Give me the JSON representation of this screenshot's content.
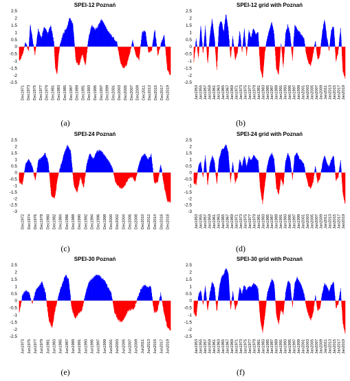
{
  "chart_data": [
    {
      "type": "area",
      "title": "SPEI-12 Poznań",
      "caption": "(a)",
      "ylim": [
        -2.5,
        2.5
      ],
      "yticks": [
        "2.5",
        "2",
        "1.5",
        "1",
        "0.5",
        "0",
        "-0.5",
        "-1",
        "-1.5",
        "-2",
        "-2.5"
      ],
      "x_range": [
        1971,
        2019
      ],
      "xticks": [
        "Dec1971",
        "Dec1973",
        "Dec1975",
        "Dec1977",
        "Dec1979",
        "Dec1981",
        "Dec1983",
        "Dec1985",
        "Dec1987",
        "Dec1989",
        "Dec1991",
        "Dec1993",
        "Dec1995",
        "Dec1997",
        "Dec1999",
        "Dec2001",
        "Dec2003",
        "Dec2005",
        "Dec2007",
        "Dec2009",
        "Dec2011",
        "Dec2013",
        "Dec2015",
        "Dec2017",
        "Dec2019"
      ],
      "positive_color": "#0000ff",
      "negative_color": "#ff0000",
      "series": [
        {
          "x": [
            1971,
            1972,
            1973,
            1974,
            1974.5,
            1975,
            1976,
            1977,
            1978,
            1979,
            1980,
            1981,
            1982,
            1982.5,
            1983,
            1983.5,
            1984,
            1985,
            1986,
            1987,
            1988,
            1989,
            1990,
            1991,
            1992,
            1993,
            1994,
            1995,
            1996,
            1997,
            1998,
            1999,
            2000,
            2001,
            2002,
            2003,
            2004,
            2005,
            2006,
            2007,
            2008,
            2009,
            2010,
            2011,
            2012,
            2013,
            2014,
            2015,
            2016,
            2017,
            2018,
            2019
          ],
          "y": [
            -1.0,
            -0.6,
            0.3,
            -0.3,
            1.5,
            0.8,
            -0.6,
            1.2,
            0.6,
            1.4,
            0.9,
            1.5,
            0.3,
            -1.5,
            -1.9,
            -0.5,
            0.2,
            0.9,
            1.3,
            2.0,
            1.6,
            -1.0,
            -1.3,
            -0.5,
            -1.3,
            0.6,
            1.5,
            1.2,
            1.4,
            1.9,
            1.6,
            1.1,
            0.8,
            0.6,
            0.3,
            -1.0,
            -1.5,
            -1.3,
            -0.5,
            0.4,
            -0.6,
            -0.9,
            1.0,
            1.1,
            -0.4,
            -0.3,
            1.2,
            -0.6,
            0.2,
            0.8,
            -1.6,
            -2.0
          ]
        }
      ]
    },
    {
      "type": "area",
      "title": "SPEI-12 grid with Poznań",
      "caption": "(b)",
      "ylim": [
        -2.5,
        2.5
      ],
      "yticks": [
        "2.5",
        "2",
        "1.5",
        "1",
        "0.5",
        "0",
        "-0.5",
        "-1",
        "-1.5",
        "-2",
        "-2.5"
      ],
      "x_range": [
        1953,
        2019
      ],
      "xticks": [
        "Jan1953",
        "Jan1955",
        "Jan1957",
        "Jan1959",
        "Jan1961",
        "Jan1963",
        "Jan1965",
        "Jan1967",
        "Jan1969",
        "Jan1971",
        "Jan1973",
        "Jan1975",
        "Jan1977",
        "Jan1979",
        "Jan1981",
        "Jan1983",
        "Jan1985",
        "Jan1987",
        "Jan1989",
        "Jan1991",
        "Jan1993",
        "Jan1995",
        "Jan1997",
        "Jan1999",
        "Jan2001",
        "Jan2003",
        "Jan2005",
        "Jan2007",
        "Jan2009",
        "Jan2011",
        "Jan2013",
        "Jan2015",
        "Jan2017",
        "Jan2019"
      ],
      "positive_color": "#0000ff",
      "negative_color": "#ff0000",
      "series": [
        {
          "x": [
            1953,
            1954,
            1955,
            1956,
            1957,
            1958,
            1959,
            1960,
            1961,
            1962,
            1963,
            1964,
            1965,
            1966,
            1967,
            1968,
            1969,
            1970,
            1971,
            1972,
            1973,
            1974,
            1975,
            1976,
            1977,
            1978,
            1979,
            1980,
            1981,
            1982,
            1983,
            1984,
            1985,
            1986,
            1987,
            1988,
            1989,
            1990,
            1991,
            1992,
            1993,
            1994,
            1995,
            1996,
            1997,
            1998,
            1999,
            2000,
            2001,
            2002,
            2003,
            2004,
            2005,
            2006,
            2007,
            2008,
            2009,
            2010,
            2011,
            2012,
            2013,
            2014,
            2015,
            2016,
            2017,
            2018,
            2019
          ],
          "y": [
            -1.0,
            0.5,
            -0.8,
            1.5,
            -0.5,
            1.4,
            -1.2,
            0.8,
            1.9,
            0.6,
            -1.6,
            1.5,
            1.8,
            1.0,
            2.3,
            1.2,
            -0.8,
            0.7,
            -0.9,
            -0.4,
            1.1,
            -0.4,
            1.2,
            -0.6,
            1.1,
            0.6,
            1.3,
            0.8,
            1.0,
            -1.5,
            -2.2,
            -0.3,
            0.6,
            1.2,
            1.7,
            0.9,
            -1.6,
            -1.9,
            0.3,
            -1.4,
            0.9,
            1.5,
            0.8,
            -0.9,
            1.5,
            1.2,
            1.0,
            0.8,
            0.6,
            -0.5,
            -1.1,
            -1.3,
            -0.5,
            0.4,
            -0.9,
            -0.6,
            1.0,
            1.9,
            0.7,
            -0.3,
            1.2,
            1.4,
            -1.0,
            -0.3,
            1.3,
            -1.7,
            -2.2
          ]
        }
      ]
    },
    {
      "type": "area",
      "title": "SPEI-24 Poznań",
      "caption": "(c)",
      "ylim": [
        -3,
        2.5
      ],
      "yticks": [
        "2.5",
        "2",
        "1.5",
        "1",
        "0.5",
        "0",
        "-0.5",
        "-1",
        "-1.5",
        "-2",
        "-2.5",
        "-3"
      ],
      "x_range": [
        1972,
        2019
      ],
      "xticks": [
        "Dec1972",
        "Dec1974",
        "Dec1976",
        "Dec1978",
        "Dec1980",
        "Dec1982",
        "Dec1984",
        "Dec1986",
        "Dec1988",
        "Dec1990",
        "Dec1992",
        "Dec1994",
        "Dec1996",
        "Dec1998",
        "Dec2000",
        "Dec2002",
        "Dec2004",
        "Dec2006",
        "Dec2008",
        "Dec2010",
        "Dec2012",
        "Dec2014",
        "Dec2016",
        "Dec2018"
      ],
      "positive_color": "#0000ff",
      "negative_color": "#ff0000",
      "series": [
        {
          "x": [
            1972,
            1973,
            1974,
            1975,
            1976,
            1977,
            1978,
            1979,
            1980,
            1981,
            1982,
            1983,
            1984,
            1985,
            1986,
            1987,
            1988,
            1989,
            1990,
            1991,
            1992,
            1993,
            1994,
            1995,
            1996,
            1997,
            1998,
            1999,
            2000,
            2001,
            2002,
            2003,
            2004,
            2005,
            2006,
            2007,
            2008,
            2009,
            2010,
            2011,
            2012,
            2013,
            2014,
            2015,
            2016,
            2017,
            2018,
            2019
          ],
          "y": [
            -0.7,
            -0.9,
            0.7,
            1.0,
            0.5,
            -0.6,
            1.0,
            1.1,
            1.5,
            0.8,
            -1.8,
            -2.0,
            -0.3,
            0.6,
            1.5,
            2.1,
            1.6,
            -1.0,
            -1.5,
            -0.3,
            -1.2,
            0.7,
            1.5,
            1.0,
            1.6,
            1.7,
            1.5,
            1.1,
            0.8,
            0.3,
            -0.8,
            -1.1,
            -1.2,
            -0.9,
            -0.4,
            -0.3,
            -0.7,
            0.4,
            1.2,
            1.4,
            1.0,
            1.4,
            -0.8,
            -0.7,
            0.6,
            -1.0,
            -2.2,
            -2.3
          ]
        }
      ]
    },
    {
      "type": "area",
      "title": "SPEI-24 grid with Poznań",
      "caption": "(d)",
      "ylim": [
        -3,
        2.5
      ],
      "yticks": [
        "2.5",
        "2",
        "1.5",
        "1",
        "0.5",
        "0",
        "-0.5",
        "-1",
        "-1.5",
        "-2",
        "-2.5",
        "-3"
      ],
      "x_range": [
        1953,
        2019
      ],
      "xticks": [
        "Jan1953",
        "Jan1955",
        "Jan1957",
        "Jan1959",
        "Jan1961",
        "Jan1963",
        "Jan1965",
        "Jan1967",
        "Jan1969",
        "Jan1971",
        "Jan1973",
        "Jan1975",
        "Jan1977",
        "Jan1979",
        "Jan1981",
        "Jan1983",
        "Jan1985",
        "Jan1987",
        "Jan1989",
        "Jan1991",
        "Jan1993",
        "Jan1995",
        "Jan1997",
        "Jan1999",
        "Jan2001",
        "Jan2003",
        "Jan2005",
        "Jan2007",
        "Jan2009",
        "Jan2011",
        "Jan2013",
        "Jan2015",
        "Jan2017",
        "Jan2019"
      ],
      "positive_color": "#0000ff",
      "negative_color": "#ff0000",
      "series": [
        {
          "x": [
            1953,
            1954,
            1955,
            1956,
            1957,
            1958,
            1959,
            1960,
            1961,
            1962,
            1963,
            1964,
            1965,
            1966,
            1967,
            1968,
            1969,
            1970,
            1971,
            1972,
            1973,
            1974,
            1975,
            1976,
            1977,
            1978,
            1979,
            1980,
            1981,
            1982,
            1983,
            1984,
            1985,
            1986,
            1987,
            1988,
            1989,
            1990,
            1991,
            1992,
            1993,
            1994,
            1995,
            1996,
            1997,
            1998,
            1999,
            2000,
            2001,
            2002,
            2003,
            2004,
            2005,
            2006,
            2007,
            2008,
            2009,
            2010,
            2011,
            2012,
            2013,
            2014,
            2015,
            2016,
            2017,
            2018,
            2019
          ],
          "y": [
            -0.8,
            -0.9,
            0.5,
            0.8,
            -0.4,
            1.3,
            -1.0,
            0.6,
            1.3,
            0.8,
            -0.9,
            1.0,
            1.7,
            1.8,
            2.2,
            1.5,
            -0.7,
            0.8,
            -0.8,
            -0.3,
            1.0,
            0.4,
            1.3,
            0.4,
            1.2,
            0.9,
            1.3,
            1.1,
            0.9,
            -1.3,
            -2.4,
            -0.8,
            0.5,
            1.2,
            1.5,
            1.0,
            -1.2,
            -1.7,
            -0.4,
            -1.0,
            0.8,
            1.5,
            1.0,
            -0.5,
            1.3,
            1.5,
            1.1,
            0.9,
            0.6,
            -0.3,
            -1.0,
            -1.2,
            -0.7,
            0.5,
            -0.8,
            -0.5,
            0.6,
            1.3,
            0.7,
            0.4,
            1.0,
            1.3,
            -0.6,
            -0.3,
            0.9,
            -1.6,
            -2.4
          ]
        }
      ]
    },
    {
      "type": "area",
      "title": "SPEI-30 Poznań",
      "caption": "(e)",
      "ylim": [
        -2.5,
        2.5
      ],
      "yticks": [
        "2.5",
        "2",
        "1.5",
        "1",
        "0.5",
        "0",
        "-0.5",
        "-1",
        "-1.5",
        "-2",
        "-2.5"
      ],
      "x_range": [
        1973,
        2019
      ],
      "xticks": [
        "Jun1973",
        "Jun1975",
        "Jun1977",
        "Jun1979",
        "Jun1981",
        "Jun1983",
        "Jun1985",
        "Jun1987",
        "Jun1989",
        "Jun1991",
        "Jun1993",
        "Jun1995",
        "Jun1997",
        "Jun1999",
        "Jun2001",
        "Jun2003",
        "Jun2005",
        "Jun2007",
        "Jun2009",
        "Jun2011",
        "Jun2013",
        "Jun2015",
        "Jun2017",
        "Jun2019"
      ],
      "positive_color": "#0000ff",
      "negative_color": "#ff0000",
      "series": [
        {
          "x": [
            1973,
            1974,
            1975,
            1976,
            1977,
            1978,
            1979,
            1980,
            1981,
            1982,
            1983,
            1984,
            1985,
            1986,
            1987,
            1988,
            1989,
            1990,
            1991,
            1992,
            1993,
            1994,
            1995,
            1996,
            1997,
            1998,
            1999,
            2000,
            2001,
            2002,
            2003,
            2004,
            2005,
            2006,
            2007,
            2008,
            2009,
            2010,
            2011,
            2012,
            2013,
            2014,
            2015,
            2016,
            2017,
            2018,
            2019
          ],
          "y": [
            -0.8,
            0.4,
            0.7,
            0.5,
            -0.2,
            0.7,
            1.0,
            1.3,
            0.5,
            -1.3,
            -1.9,
            -0.5,
            0.4,
            1.1,
            1.8,
            1.5,
            -0.6,
            -1.2,
            -0.9,
            -0.7,
            0.3,
            1.2,
            1.5,
            1.7,
            1.8,
            1.6,
            1.4,
            0.9,
            0.5,
            -0.8,
            -1.3,
            -1.5,
            -1.2,
            -0.7,
            -0.6,
            -0.5,
            0.2,
            0.8,
            1.1,
            0.9,
            1.0,
            -0.8,
            -0.7,
            0.5,
            -0.8,
            -1.8,
            -2.1
          ]
        }
      ]
    },
    {
      "type": "area",
      "title": "SPEI-30 grid with Poznań",
      "caption": "(f)",
      "ylim": [
        -2.5,
        2.5
      ],
      "yticks": [
        "2.5",
        "2",
        "1.5",
        "1",
        "0.5",
        "0",
        "-0.5",
        "-1",
        "-1.5",
        "-2",
        "-2.5"
      ],
      "x_range": [
        1953,
        2019
      ],
      "xticks": [
        "Jan1953",
        "Jan1955",
        "Jan1957",
        "Jan1959",
        "Jan1961",
        "Jan1963",
        "Jan1965",
        "Jan1967",
        "Jan1969",
        "Jan1971",
        "Jan1973",
        "Jan1975",
        "Jan1977",
        "Jan1979",
        "Jan1981",
        "Jan1983",
        "Jan1985",
        "Jan1987",
        "Jan1989",
        "Jan1991",
        "Jan1993",
        "Jan1995",
        "Jan1997",
        "Jan1999",
        "Jan2001",
        "Jan2003",
        "Jan2005",
        "Jan2007",
        "Jan2009",
        "Jan2011",
        "Jan2013",
        "Jan2015",
        "Jan2017",
        "Jan2019"
      ],
      "positive_color": "#0000ff",
      "negative_color": "#ff0000",
      "series": [
        {
          "x": [
            1953,
            1954,
            1955,
            1956,
            1957,
            1958,
            1959,
            1960,
            1961,
            1962,
            1963,
            1964,
            1965,
            1966,
            1967,
            1968,
            1969,
            1970,
            1971,
            1972,
            1973,
            1974,
            1975,
            1976,
            1977,
            1978,
            1979,
            1980,
            1981,
            1982,
            1983,
            1984,
            1985,
            1986,
            1987,
            1988,
            1989,
            1990,
            1991,
            1992,
            1993,
            1994,
            1995,
            1996,
            1997,
            1998,
            1999,
            2000,
            2001,
            2002,
            2003,
            2004,
            2005,
            2006,
            2007,
            2008,
            2009,
            2010,
            2011,
            2012,
            2013,
            2014,
            2015,
            2016,
            2017,
            2018,
            2019
          ],
          "y": [
            -0.8,
            -1.1,
            0.4,
            0.7,
            -0.3,
            1.0,
            -0.7,
            0.5,
            1.3,
            0.9,
            -0.8,
            0.8,
            1.6,
            1.8,
            2.3,
            1.9,
            -0.6,
            0.6,
            -0.6,
            -0.2,
            0.9,
            0.5,
            1.1,
            0.7,
            1.0,
            0.9,
            1.2,
            1.1,
            0.8,
            -1.4,
            -2.2,
            -1.0,
            0.5,
            1.0,
            1.5,
            1.2,
            -1.0,
            -1.6,
            -0.6,
            -0.9,
            0.5,
            1.4,
            1.2,
            -0.4,
            1.2,
            1.6,
            1.3,
            1.0,
            0.5,
            -0.4,
            -1.0,
            -1.3,
            -0.9,
            0.4,
            -0.7,
            -0.5,
            0.5,
            1.2,
            1.0,
            0.6,
            1.1,
            1.3,
            -0.5,
            -0.2,
            0.8,
            -1.5,
            -2.3
          ]
        }
      ]
    }
  ]
}
